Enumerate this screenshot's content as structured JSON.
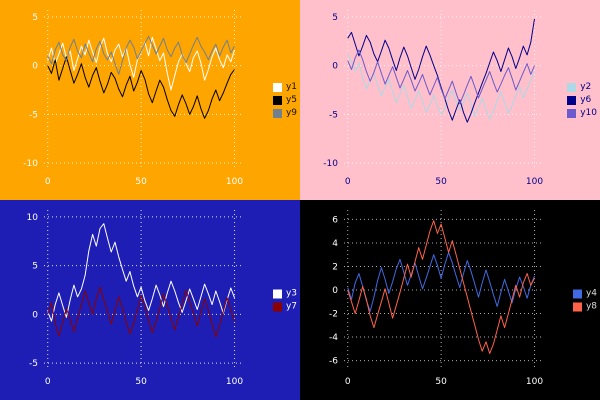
{
  "chart_data": [
    {
      "type": "line",
      "position": "top-left",
      "background": "#FFA500",
      "grid": true,
      "grid_color": "#FFFFFF",
      "tick_color": "#FFFFFF",
      "legend_text_color": "#111111",
      "legend_position": "center-right",
      "x_ticks": [
        0,
        50,
        100
      ],
      "y_ticks": [
        5,
        0,
        -5,
        -10
      ],
      "xlim": [
        -2,
        104
      ],
      "ylim": [
        -10.7,
        5.7
      ],
      "x": [
        0,
        2,
        4,
        6,
        8,
        10,
        12,
        14,
        16,
        18,
        20,
        22,
        24,
        26,
        28,
        30,
        32,
        34,
        36,
        38,
        40,
        42,
        44,
        46,
        48,
        50,
        52,
        54,
        56,
        58,
        60,
        62,
        64,
        66,
        68,
        70,
        72,
        74,
        76,
        78,
        80,
        82,
        84,
        86,
        88,
        90,
        92,
        94,
        96,
        98,
        100
      ],
      "series": [
        {
          "name": "y1",
          "color": "#FFFFFF",
          "values": [
            0.5,
            1.8,
            0.2,
            1.2,
            2.3,
            0.8,
            1.5,
            -0.5,
            0.7,
            2.0,
            1.1,
            2.6,
            1.4,
            0.3,
            1.9,
            2.8,
            1.2,
            0.4,
            1.6,
            2.2,
            0.9,
            1.8,
            0.1,
            -1.2,
            0.6,
            1.4,
            2.4,
            1.0,
            2.9,
            1.7,
            0.5,
            1.3,
            -0.8,
            -2.5,
            -1.0,
            0.4,
            1.2,
            0.2,
            -0.6,
            0.8,
            1.5,
            0.3,
            -1.5,
            -0.4,
            0.9,
            1.8,
            0.6,
            -0.2,
            1.1,
            0.4,
            1.6
          ]
        },
        {
          "name": "y5",
          "color": "#000000",
          "values": [
            0.0,
            -0.8,
            0.6,
            -1.5,
            -0.3,
            0.9,
            -0.5,
            -1.8,
            -0.9,
            0.2,
            -1.2,
            -2.2,
            -1.0,
            -0.2,
            -1.6,
            -2.8,
            -1.9,
            -0.7,
            -1.3,
            -2.4,
            -3.2,
            -2.0,
            -1.1,
            -2.6,
            -1.7,
            -0.5,
            -1.4,
            -2.9,
            -3.8,
            -2.6,
            -1.5,
            -2.2,
            -3.5,
            -4.6,
            -5.2,
            -4.0,
            -3.0,
            -3.9,
            -5.0,
            -4.2,
            -3.1,
            -4.4,
            -5.4,
            -4.6,
            -3.4,
            -2.5,
            -3.6,
            -2.8,
            -1.8,
            -0.9,
            -0.4
          ]
        },
        {
          "name": "y9",
          "color": "#708090",
          "values": [
            1.0,
            0.2,
            1.6,
            2.4,
            1.1,
            0.5,
            1.9,
            2.7,
            1.5,
            0.8,
            2.2,
            1.3,
            0.4,
            1.7,
            2.5,
            1.2,
            0.6,
            1.4,
            0.2,
            -0.9,
            0.5,
            1.8,
            2.6,
            1.9,
            0.7,
            1.5,
            2.3,
            3.0,
            2.1,
            1.2,
            2.0,
            2.8,
            1.6,
            0.9,
            1.8,
            2.4,
            1.1,
            0.3,
            1.2,
            2.1,
            2.9,
            2.0,
            1.4,
            0.6,
            1.5,
            2.2,
            1.0,
            1.9,
            2.6,
            1.3,
            2.0
          ]
        }
      ]
    },
    {
      "type": "line",
      "position": "top-right",
      "background": "#FFC0CB",
      "grid": true,
      "grid_color": "#FFFFFF",
      "tick_color": "#00008B",
      "legend_text_color": "#00008B",
      "legend_position": "center-right",
      "x_ticks": [
        0,
        50,
        100
      ],
      "y_ticks": [
        5,
        0,
        -5,
        -10
      ],
      "xlim": [
        -2,
        104
      ],
      "ylim": [
        -10.7,
        5.7
      ],
      "x": [
        0,
        2,
        4,
        6,
        8,
        10,
        12,
        14,
        16,
        18,
        20,
        22,
        24,
        26,
        28,
        30,
        32,
        34,
        36,
        38,
        40,
        42,
        44,
        46,
        48,
        50,
        52,
        54,
        56,
        58,
        60,
        62,
        64,
        66,
        68,
        70,
        72,
        74,
        76,
        78,
        80,
        82,
        84,
        86,
        88,
        90,
        92,
        94,
        96,
        98,
        100
      ],
      "series": [
        {
          "name": "y2",
          "color": "#ADD8E6",
          "values": [
            1.2,
            0.4,
            -0.6,
            0.3,
            -1.2,
            -2.4,
            -1.5,
            -0.8,
            -2.0,
            -3.1,
            -2.2,
            -1.4,
            -2.6,
            -3.8,
            -2.9,
            -2.0,
            -3.2,
            -4.4,
            -3.5,
            -2.6,
            -3.6,
            -4.8,
            -4.0,
            -3.0,
            -4.2,
            -5.0,
            -4.4,
            -3.4,
            -2.5,
            -3.7,
            -4.6,
            -3.8,
            -2.8,
            -3.9,
            -5.2,
            -4.3,
            -3.3,
            -4.5,
            -5.5,
            -4.7,
            -3.6,
            -2.7,
            -3.8,
            -4.9,
            -4.1,
            -3.1,
            -2.2,
            -3.3,
            -2.4,
            -1.5,
            -0.6
          ]
        },
        {
          "name": "y6",
          "color": "#00008B",
          "values": [
            2.8,
            3.4,
            2.2,
            1.0,
            2.0,
            3.1,
            2.4,
            1.2,
            0.4,
            1.5,
            2.6,
            1.8,
            0.6,
            -0.5,
            0.8,
            1.9,
            1.0,
            -0.2,
            -1.4,
            -0.4,
            0.9,
            2.0,
            1.1,
            0.0,
            -1.0,
            -2.2,
            -3.4,
            -4.6,
            -5.6,
            -4.5,
            -3.5,
            -4.8,
            -5.8,
            -4.9,
            -3.8,
            -2.8,
            -1.8,
            -0.8,
            0.3,
            1.4,
            0.5,
            -0.6,
            0.6,
            1.8,
            0.9,
            -0.3,
            0.8,
            2.0,
            1.1,
            2.4,
            4.8
          ]
        },
        {
          "name": "y10",
          "color": "#6A5ACD",
          "values": [
            0.5,
            -0.4,
            0.8,
            1.6,
            0.6,
            -0.6,
            -1.6,
            -0.7,
            0.4,
            -0.8,
            -1.9,
            -1.0,
            -0.1,
            -1.2,
            -2.3,
            -1.4,
            -0.5,
            -1.5,
            -2.6,
            -1.8,
            -0.9,
            -2.0,
            -3.0,
            -2.1,
            -1.2,
            -2.4,
            -3.4,
            -2.5,
            -1.6,
            -2.8,
            -3.9,
            -3.0,
            -2.0,
            -1.1,
            -2.2,
            -3.3,
            -2.4,
            -1.5,
            -0.6,
            -1.7,
            -2.7,
            -1.9,
            -1.0,
            -0.2,
            -1.3,
            -2.5,
            -1.6,
            -0.7,
            0.2,
            -0.9,
            0.0
          ]
        }
      ]
    },
    {
      "type": "line",
      "position": "bottom-left",
      "background": "#1E1EB4",
      "grid": true,
      "grid_color": "#FFFFFF",
      "tick_color": "#FFFFFF",
      "legend_text_color": "#FFFFFF",
      "legend_position": "center-right",
      "x_ticks": [
        0,
        50,
        100
      ],
      "y_ticks": [
        10,
        5,
        0,
        -5
      ],
      "xlim": [
        -2,
        104
      ],
      "ylim": [
        -5.7,
        10.7
      ],
      "x": [
        0,
        2,
        4,
        6,
        8,
        10,
        12,
        14,
        16,
        18,
        20,
        22,
        24,
        26,
        28,
        30,
        32,
        34,
        36,
        38,
        40,
        42,
        44,
        46,
        48,
        50,
        52,
        54,
        56,
        58,
        60,
        62,
        64,
        66,
        68,
        70,
        72,
        74,
        76,
        78,
        80,
        82,
        84,
        86,
        88,
        90,
        92,
        94,
        96,
        98,
        100
      ],
      "series": [
        {
          "name": "y3",
          "color": "#FFFFFF",
          "values": [
            0.3,
            -0.7,
            1.0,
            2.2,
            0.9,
            -0.3,
            1.5,
            3.0,
            1.8,
            2.6,
            4.0,
            6.5,
            8.2,
            7.0,
            8.8,
            9.3,
            7.8,
            6.4,
            7.4,
            5.9,
            4.6,
            3.4,
            4.4,
            2.9,
            1.8,
            2.8,
            1.4,
            0.4,
            1.6,
            3.0,
            2.0,
            0.8,
            2.2,
            3.4,
            2.4,
            1.2,
            0.2,
            1.4,
            2.6,
            1.6,
            0.5,
            1.8,
            3.1,
            2.1,
            1.0,
            2.4,
            1.3,
            0.1,
            1.5,
            2.7,
            1.7
          ]
        },
        {
          "name": "y7",
          "color": "#8B0000",
          "values": [
            0.0,
            1.2,
            -0.9,
            -2.2,
            -0.8,
            0.6,
            -0.5,
            -1.8,
            -0.4,
            1.0,
            2.4,
            1.2,
            0.0,
            1.6,
            2.8,
            1.5,
            0.3,
            -1.0,
            0.4,
            1.8,
            0.6,
            -0.8,
            -2.0,
            -0.9,
            0.5,
            1.9,
            0.8,
            -0.6,
            -1.9,
            -0.7,
            0.7,
            2.1,
            0.9,
            -0.4,
            -1.6,
            -0.3,
            1.1,
            2.5,
            1.3,
            0.1,
            -1.2,
            0.2,
            1.6,
            0.4,
            -1.0,
            -2.3,
            -1.1,
            0.3,
            1.7,
            0.5,
            -0.7
          ]
        }
      ]
    },
    {
      "type": "line",
      "position": "bottom-right",
      "background": "#000000",
      "grid": true,
      "grid_color": "#CCCCCC",
      "tick_color": "#FFFFFF",
      "legend_text_color": "#DDDDDD",
      "legend_position": "center-right",
      "x_ticks": [
        0,
        50,
        100
      ],
      "y_ticks": [
        6,
        4,
        2,
        0,
        -2,
        -4,
        -6
      ],
      "xlim": [
        -2,
        104
      ],
      "ylim": [
        -6.8,
        6.8
      ],
      "x": [
        0,
        2,
        4,
        6,
        8,
        10,
        12,
        14,
        16,
        18,
        20,
        22,
        24,
        26,
        28,
        30,
        32,
        34,
        36,
        38,
        40,
        42,
        44,
        46,
        48,
        50,
        52,
        54,
        56,
        58,
        60,
        62,
        64,
        66,
        68,
        70,
        72,
        74,
        76,
        78,
        80,
        82,
        84,
        86,
        88,
        90,
        92,
        94,
        96,
        98,
        100
      ],
      "series": [
        {
          "name": "y4",
          "color": "#4169E1",
          "values": [
            0.2,
            -0.8,
            0.6,
            1.4,
            0.3,
            -0.9,
            -1.8,
            -0.6,
            0.8,
            1.9,
            0.9,
            -0.3,
            0.7,
            1.8,
            2.6,
            1.5,
            0.4,
            1.3,
            2.3,
            1.2,
            0.1,
            1.0,
            2.0,
            3.0,
            2.1,
            1.0,
            2.2,
            3.2,
            2.3,
            1.2,
            0.2,
            1.4,
            2.5,
            1.6,
            0.5,
            -0.6,
            0.6,
            1.7,
            0.7,
            -0.4,
            -1.4,
            -0.2,
            0.9,
            -0.1,
            -1.1,
            0.1,
            1.1,
            0.3,
            -0.7,
            0.4,
            1.2
          ]
        },
        {
          "name": "y8",
          "color": "#FF6347",
          "values": [
            0.0,
            -1.0,
            -2.0,
            -0.9,
            0.3,
            -0.8,
            -2.2,
            -3.2,
            -2.1,
            -1.0,
            0.1,
            -1.1,
            -2.4,
            -1.3,
            -0.2,
            1.0,
            2.2,
            1.1,
            2.4,
            3.6,
            2.6,
            3.8,
            5.0,
            5.9,
            4.8,
            5.6,
            4.4,
            3.2,
            4.2,
            3.0,
            1.8,
            0.6,
            -0.6,
            -1.8,
            -3.0,
            -4.2,
            -5.2,
            -4.4,
            -5.4,
            -4.6,
            -3.4,
            -2.2,
            -3.2,
            -2.0,
            -0.8,
            0.4,
            -0.6,
            0.6,
            1.4,
            0.4,
            1.0
          ]
        }
      ]
    }
  ]
}
